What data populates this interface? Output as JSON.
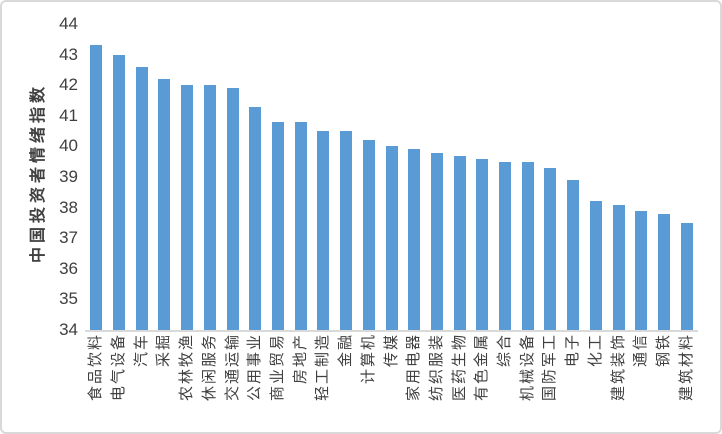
{
  "chart_data": {
    "type": "bar",
    "title": "",
    "xlabel": "",
    "ylabel": "中国投资者情绪指数",
    "ylim": [
      34,
      44
    ],
    "ytick_step": 1,
    "yticks": [
      44,
      43,
      42,
      41,
      40,
      39,
      38,
      37,
      36,
      35,
      34
    ],
    "grid": false,
    "legend_position": "none",
    "bar_color": "#5B9BD5",
    "categories": [
      "食品饮料",
      "电气设备",
      "汽车",
      "采掘",
      "农林牧渔",
      "休闲服务",
      "交通运输",
      "公用事业",
      "商业贸易",
      "房地产",
      "轻工制造",
      "金融",
      "计算机",
      "传媒",
      "家用电器",
      "纺织服装",
      "医药生物",
      "有色金属",
      "综合",
      "机械设备",
      "国防军工",
      "电子",
      "化工",
      "建筑装饰",
      "通信",
      "钢铁",
      "建筑材料"
    ],
    "values": [
      43.3,
      43.0,
      42.6,
      42.2,
      42.0,
      42.0,
      41.9,
      41.3,
      40.8,
      40.8,
      40.5,
      40.5,
      40.2,
      40.0,
      39.9,
      39.8,
      39.7,
      39.6,
      39.5,
      39.5,
      39.3,
      38.9,
      38.2,
      38.1,
      37.9,
      37.8,
      37.5
    ]
  },
  "colors": {
    "bar": "#5B9BD5",
    "axis_line": "#D9D9D9",
    "frame_border": "#D9D9D9",
    "text": "#404040",
    "background": "#FFFFFF"
  }
}
